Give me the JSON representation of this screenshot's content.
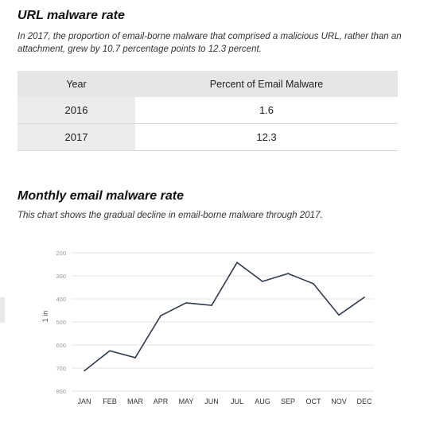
{
  "table_section": {
    "title": "URL malware rate",
    "description": "In 2017, the proportion of email-borne malware that comprised a malicious URL, rather than an attachment, grew by 10.7 percentage points to 12.3 percent.",
    "headers": [
      "Year",
      "Percent of Email Malware"
    ],
    "rows": [
      [
        "2016",
        "1.6"
      ],
      [
        "2017",
        "12.3"
      ]
    ]
  },
  "chart_section": {
    "title": "Monthly email malware rate",
    "description": "This chart shows the gradual decline in email-borne malware through 2017."
  },
  "chart_data": {
    "type": "line",
    "title": "Monthly email malware rate",
    "subtitle": "This chart shows the gradual decline in email-borne malware through 2017.",
    "xlabel": "",
    "ylabel": "1 in",
    "categories": [
      "JAN",
      "FEB",
      "MAR",
      "APR",
      "MAY",
      "JUN",
      "JUL",
      "AUG",
      "SEP",
      "OCT",
      "NOV",
      "DEC"
    ],
    "series": [
      {
        "values": [
          712,
          625,
          655,
          473,
          417,
          428,
          242,
          324,
          290,
          334,
          470,
          393
        ]
      }
    ],
    "yticks": [
      "200",
      "300",
      "400",
      "500",
      "600",
      "700",
      "800"
    ],
    "ylim": [
      200,
      800
    ],
    "y_inverted": true,
    "grid": true,
    "legend": "none",
    "colors": {
      "line": "#2e3a52",
      "grid": "#e3e3e3"
    }
  }
}
